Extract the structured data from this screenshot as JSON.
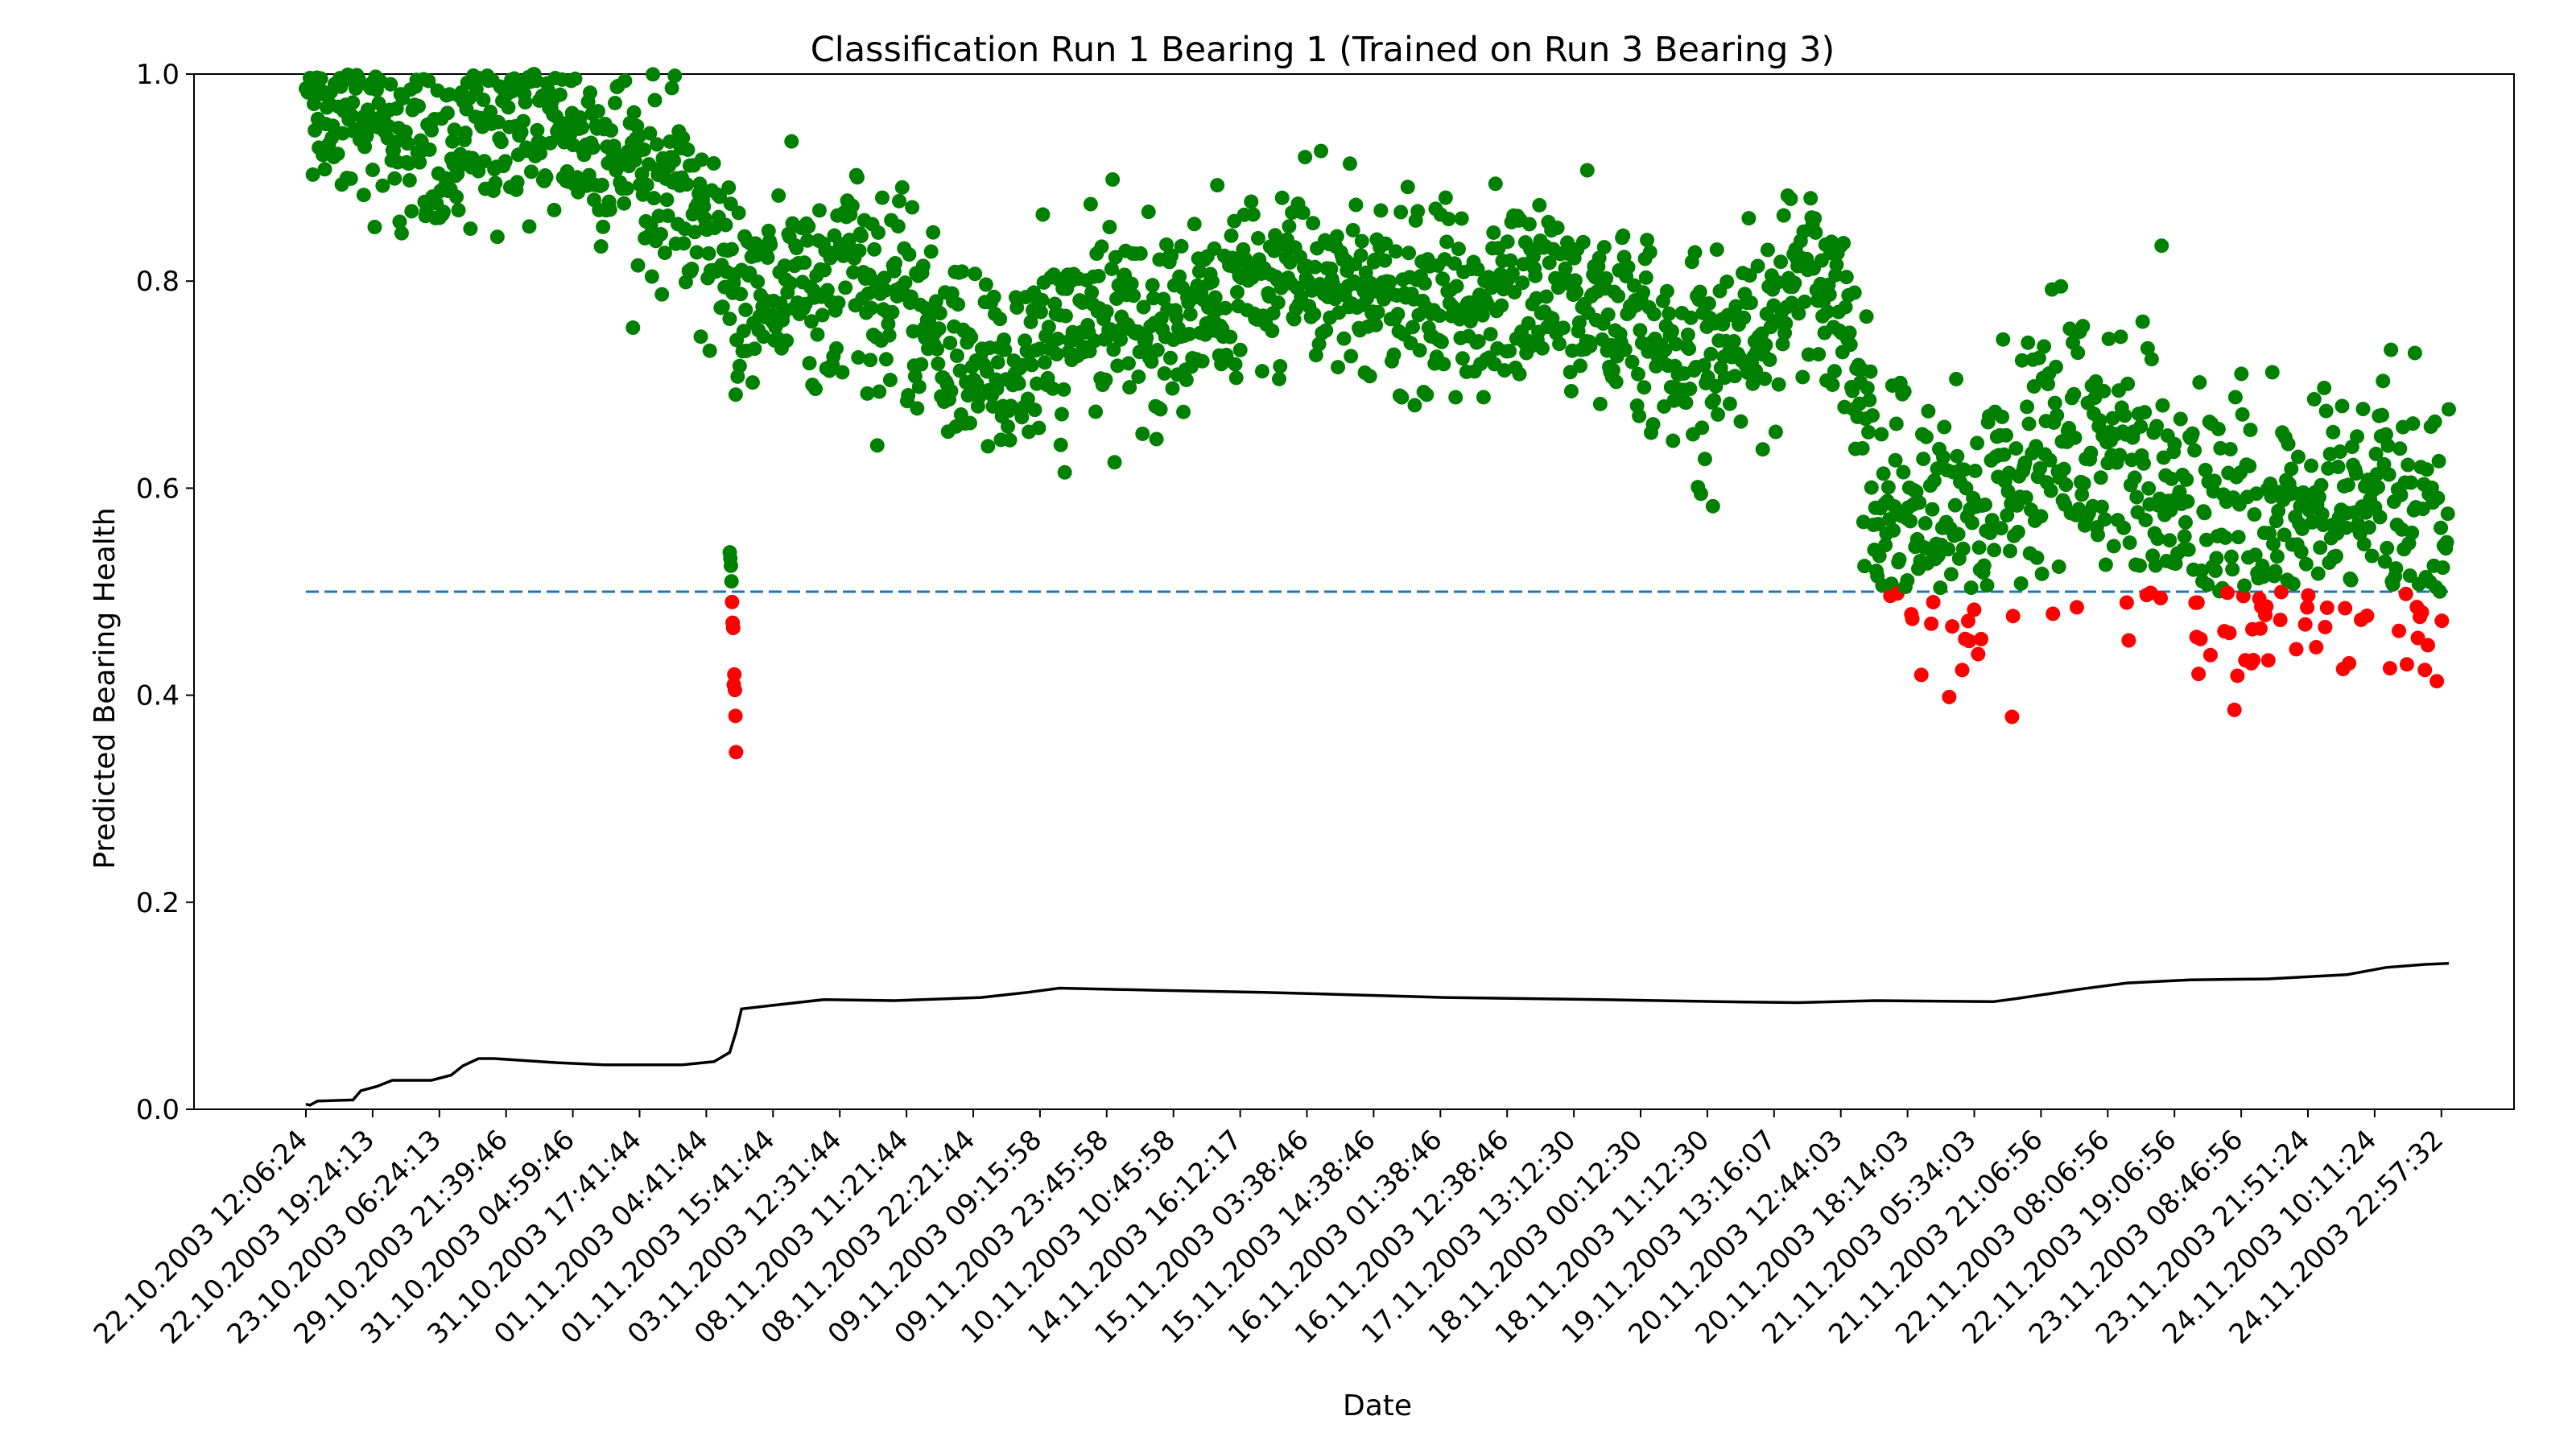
{
  "chart_data": {
    "type": "scatter",
    "title": "Classification Run 1 Bearing 1 (Trained on Run 3 Bearing 3)",
    "xlabel": "Date",
    "ylabel": "Predicted Bearing Health",
    "ylim": [
      0,
      1
    ],
    "y_ticks": [
      "0.0",
      "0.2",
      "0.4",
      "0.6",
      "0.8",
      "1.0"
    ],
    "x_tick_labels": [
      "22.10.2003 12:06:24",
      "22.10.2003 19:24:13",
      "23.10.2003 06:24:13",
      "29.10.2003 21:39:46",
      "31.10.2003 04:59:46",
      "31.10.2003 17:41:44",
      "01.11.2003 04:41:44",
      "01.11.2003 15:41:44",
      "03.11.2003 12:31:44",
      "08.11.2003 11:21:44",
      "08.11.2003 22:21:44",
      "09.11.2003 09:15:58",
      "09.11.2003 23:45:58",
      "10.11.2003 10:45:58",
      "14.11.2003 16:12:17",
      "15.11.2003 03:38:46",
      "15.11.2003 14:38:46",
      "16.11.2003 01:38:46",
      "16.11.2003 12:38:46",
      "17.11.2003 13:12:30",
      "18.11.2003 00:12:30",
      "18.11.2003 11:12:30",
      "19.11.2003 13:16:07",
      "20.11.2003 12:44:03",
      "20.11.2003 18:14:03",
      "21.11.2003 05:34:03",
      "21.11.2003 21:06:56",
      "22.11.2003 08:06:56",
      "22.11.2003 19:06:56",
      "23.11.2003 08:46:56",
      "23.11.2003 21:51:24",
      "24.11.2003 10:11:24",
      "24.11.2003 22:57:32"
    ],
    "threshold": 0.5,
    "threshold_color": "#1f77b4",
    "healthy_color": "#008000",
    "faulty_color": "#ff0000",
    "cumulative_line_color": "#000000",
    "x_index_range": [
      0,
      2155
    ],
    "series": [
      {
        "role": "predicted-health",
        "trend_knots": [
          [
            0,
            1.0
          ],
          [
            60,
            0.97
          ],
          [
            120,
            0.95
          ],
          [
            170,
            0.9
          ],
          [
            200,
            0.93
          ],
          [
            260,
            0.96
          ],
          [
            320,
            0.95
          ],
          [
            380,
            0.93
          ],
          [
            440,
            0.9
          ],
          [
            500,
            0.86
          ],
          [
            540,
            0.8
          ],
          [
            620,
            0.79
          ],
          [
            700,
            0.81
          ],
          [
            760,
            0.77
          ],
          [
            830,
            0.73
          ],
          [
            880,
            0.71
          ],
          [
            940,
            0.73
          ],
          [
            1000,
            0.76
          ],
          [
            1080,
            0.76
          ],
          [
            1160,
            0.78
          ],
          [
            1240,
            0.8
          ],
          [
            1300,
            0.8
          ],
          [
            1380,
            0.78
          ],
          [
            1440,
            0.77
          ],
          [
            1520,
            0.78
          ],
          [
            1580,
            0.8
          ],
          [
            1640,
            0.78
          ],
          [
            1700,
            0.75
          ],
          [
            1760,
            0.72
          ],
          [
            1850,
            0.76
          ],
          [
            1900,
            0.8
          ],
          [
            1950,
            0.78
          ],
          [
            2000,
            0.6
          ],
          [
            2060,
            0.57
          ],
          [
            2110,
            0.56
          ],
          [
            2160,
            0.58
          ],
          [
            2200,
            0.63
          ],
          [
            2260,
            0.65
          ],
          [
            2310,
            0.63
          ],
          [
            2360,
            0.6
          ],
          [
            2400,
            0.57
          ],
          [
            2450,
            0.54
          ],
          [
            2500,
            0.55
          ],
          [
            2560,
            0.56
          ],
          [
            2640,
            0.57
          ],
          [
            2700,
            0.56
          ],
          [
            2730,
            0.56
          ]
        ],
        "noise_sd": 0.045,
        "dip_episode": {
          "x_range": [
            540,
            548
          ],
          "values": [
            0.538,
            0.532,
            0.525,
            0.51,
            0.49,
            0.47,
            0.465,
            0.41,
            0.42,
            0.405,
            0.38,
            0.345
          ]
        }
      },
      {
        "role": "cumulative-trend",
        "points": [
          [
            0,
            0.005
          ],
          [
            5,
            0.004
          ],
          [
            15,
            0.008
          ],
          [
            60,
            0.009
          ],
          [
            70,
            0.018
          ],
          [
            90,
            0.022
          ],
          [
            110,
            0.028
          ],
          [
            160,
            0.028
          ],
          [
            185,
            0.033
          ],
          [
            200,
            0.042
          ],
          [
            220,
            0.049
          ],
          [
            240,
            0.049
          ],
          [
            320,
            0.045
          ],
          [
            380,
            0.043
          ],
          [
            480,
            0.043
          ],
          [
            520,
            0.046
          ],
          [
            540,
            0.055
          ],
          [
            548,
            0.075
          ],
          [
            555,
            0.097
          ],
          [
            590,
            0.1
          ],
          [
            660,
            0.106
          ],
          [
            750,
            0.105
          ],
          [
            860,
            0.108
          ],
          [
            920,
            0.113
          ],
          [
            960,
            0.117
          ],
          [
            1080,
            0.115
          ],
          [
            1220,
            0.113
          ],
          [
            1450,
            0.108
          ],
          [
            1650,
            0.106
          ],
          [
            1800,
            0.104
          ],
          [
            1900,
            0.103
          ],
          [
            2000,
            0.105
          ],
          [
            2150,
            0.104
          ],
          [
            2180,
            0.107
          ],
          [
            2260,
            0.116
          ],
          [
            2320,
            0.122
          ],
          [
            2400,
            0.125
          ],
          [
            2500,
            0.126
          ],
          [
            2600,
            0.13
          ],
          [
            2650,
            0.137
          ],
          [
            2700,
            0.14
          ],
          [
            2730,
            0.141
          ]
        ]
      }
    ]
  }
}
